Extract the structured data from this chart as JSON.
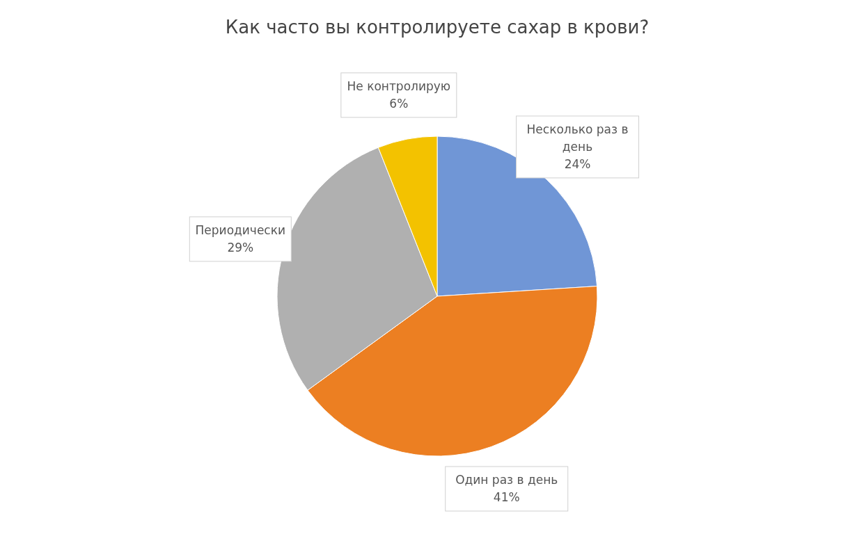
{
  "chart_data": {
    "type": "pie",
    "title": "Как часто вы контролируете сахар в крови?",
    "categories": [
      "Несколько раз в день",
      "Один раз в день",
      "Периодически",
      "Не контролирую"
    ],
    "values": [
      24,
      41,
      29,
      6
    ],
    "value_labels": [
      "24%",
      "41%",
      "29%",
      "6%"
    ],
    "colors": [
      "#7096d6",
      "#ec7f22",
      "#b0b0b0",
      "#f3c200"
    ]
  }
}
